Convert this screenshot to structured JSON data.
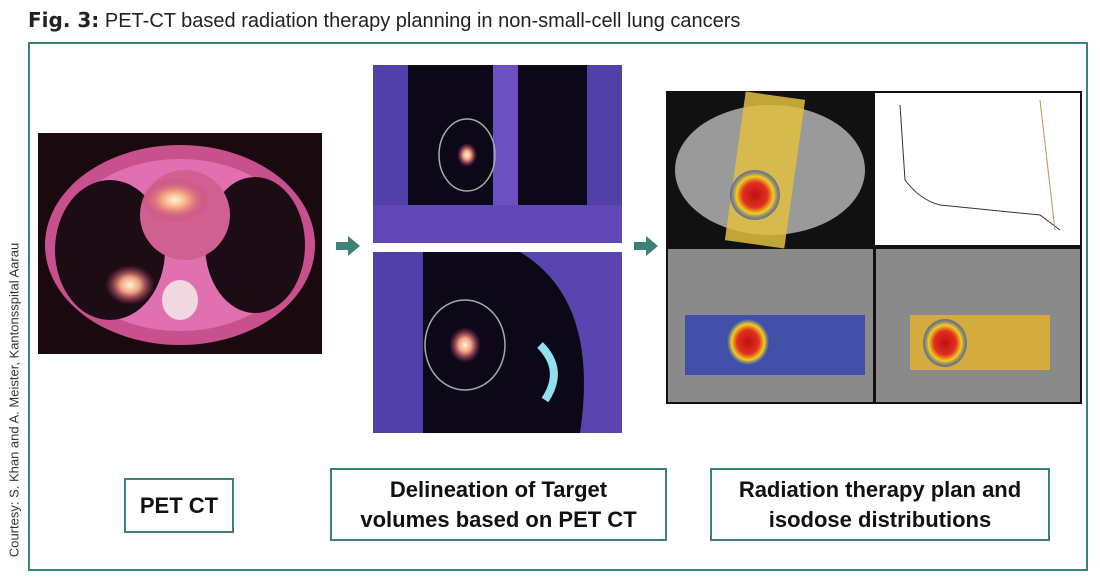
{
  "caption": {
    "label": "Fig. 3:",
    "text": "PET-CT based radiation therapy planning in non-small-cell lung cancers"
  },
  "credit": "Courtesy: S. Khan and A. Meister, Kantonsspital Aarau",
  "steps": [
    {
      "label": "PET CT"
    },
    {
      "label": "Delineation of Target volumes based on PET CT"
    },
    {
      "label": "Radiation therapy plan and isodose distributions"
    }
  ]
}
